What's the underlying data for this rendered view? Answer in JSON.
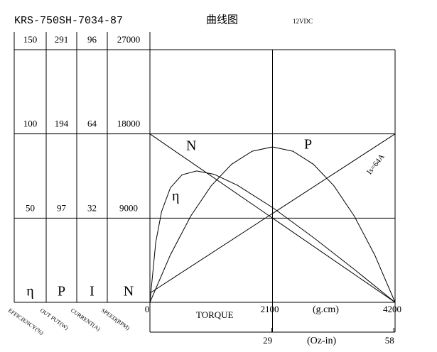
{
  "chart_data": {
    "type": "line",
    "title": "KRS-750SH-7034-87",
    "subtitle": "曲线图",
    "note": "12VDC",
    "xlabel": "TORQUE",
    "xunit": "(g.cm)",
    "xlim": [
      0,
      4200
    ],
    "xticks": [
      0,
      2100,
      4200
    ],
    "x2unit": "(Oz-in)",
    "x2lim": [
      0,
      58.3
    ],
    "x2ticks": [
      29,
      58
    ],
    "y_axes": [
      {
        "label": "EFFICIENCY(%)",
        "symbol": "η",
        "lim": [
          0,
          150
        ],
        "ticks": [
          50,
          100,
          150
        ]
      },
      {
        "label": "OUT PUT(W)",
        "symbol": "P",
        "lim": [
          0,
          291
        ],
        "ticks": [
          97,
          194,
          291
        ]
      },
      {
        "label": "CURRENT(A)",
        "symbol": "I",
        "lim": [
          0,
          96
        ],
        "ticks": [
          32,
          64,
          96
        ]
      },
      {
        "label": "SPEED(RPM)",
        "symbol": "N",
        "lim": [
          0,
          27000
        ],
        "ticks": [
          9000,
          18000,
          27000
        ]
      }
    ],
    "grid": true,
    "series": [
      {
        "name": "η",
        "axis": 0,
        "color": "#000000",
        "x": [
          0,
          100,
          200,
          350,
          550,
          800,
          1100,
          1500,
          2100,
          2800,
          3500,
          4200
        ],
        "values": [
          0,
          35.7,
          53.9,
          68,
          75.7,
          78,
          76,
          69.5,
          56.3,
          38.5,
          19.6,
          0
        ]
      },
      {
        "name": "P",
        "axis": 1,
        "color": "#000000",
        "x": [
          0,
          350,
          700,
          1050,
          1400,
          1750,
          2100,
          2450,
          2800,
          3150,
          3500,
          3850,
          4200
        ],
        "values": [
          0,
          54.7,
          99.4,
          134.3,
          159.1,
          174,
          179,
          174,
          159.1,
          134.3,
          99.4,
          54.7,
          0
        ]
      },
      {
        "name": "Is=64A",
        "axis": 2,
        "color": "#000000",
        "x": [
          0,
          4200
        ],
        "values": [
          3.5,
          64
        ]
      },
      {
        "name": "N",
        "axis": 3,
        "color": "#000000",
        "x": [
          0,
          4200
        ],
        "values": [
          18000,
          0
        ]
      }
    ]
  }
}
